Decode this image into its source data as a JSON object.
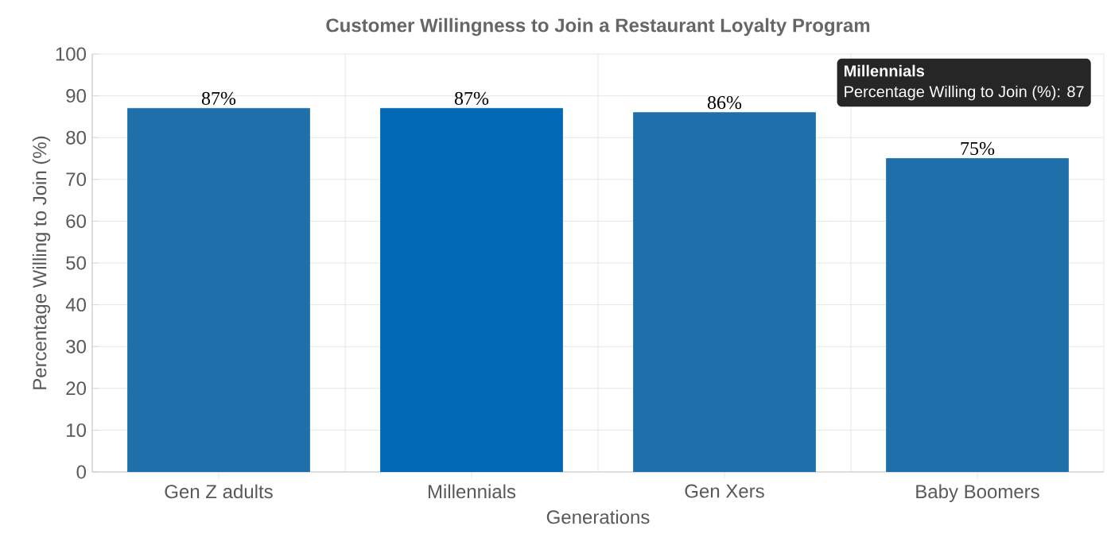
{
  "chart_data": {
    "type": "bar",
    "title": "Customer Willingness to Join a Restaurant Loyalty Program",
    "xlabel": "Generations",
    "ylabel": "Percentage Willing to Join (%)",
    "categories": [
      "Gen Z adults",
      "Millennials",
      "Gen Xers",
      "Baby Boomers"
    ],
    "values": [
      87,
      87,
      86,
      75
    ],
    "colors": [
      "#1f70aa",
      "#0068b5",
      "#1f70aa",
      "#1f70aa"
    ],
    "value_labels": [
      "87%",
      "87%",
      "86%",
      "75%"
    ],
    "ylim": [
      0,
      100
    ],
    "yticks": [
      0,
      10,
      20,
      30,
      40,
      50,
      60,
      70,
      80,
      90,
      100
    ],
    "grid": true,
    "annotations": [
      "Millennials",
      "Percentage Willing to Join (%): 87"
    ]
  }
}
